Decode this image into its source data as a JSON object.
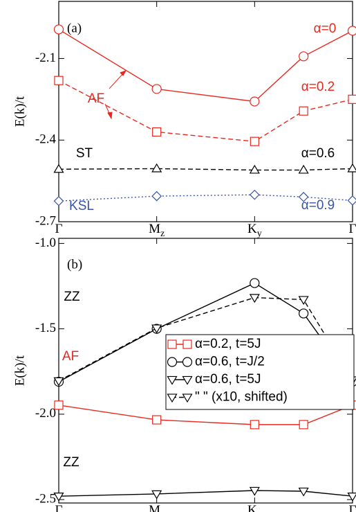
{
  "chart_data": [
    {
      "type": "line",
      "panel_label": "(a)",
      "ylabel": "E(k)/t",
      "x": [
        0,
        1,
        2,
        2.5,
        3
      ],
      "xlim": [
        0,
        3
      ],
      "xticks": [
        {
          "value": 0,
          "label": "Γ"
        },
        {
          "value": 1,
          "label": "M",
          "sub": "z"
        },
        {
          "value": 2,
          "label": "K",
          "sub": "y"
        },
        {
          "value": 3,
          "label": "Γ"
        }
      ],
      "ylim": [
        -2.7,
        -1.89
      ],
      "yticks": [
        -2.1,
        -2.4,
        -2.7
      ],
      "series": [
        {
          "name": "α=0",
          "color": "#e8281e",
          "dash": "solid",
          "marker": "circle",
          "values": [
            -1.993,
            -2.212,
            -2.258,
            -2.092,
            -1.998
          ]
        },
        {
          "name": "α=0.2",
          "color": "#e8281e",
          "dash": "dashed",
          "marker": "square",
          "values": [
            -2.181,
            -2.37,
            -2.405,
            -2.293,
            -2.25
          ]
        },
        {
          "name": "α=0.6",
          "color": "#000000",
          "dash": "dashed",
          "marker": "triangle-up",
          "values": [
            -2.507,
            -2.505,
            -2.51,
            -2.51,
            -2.505
          ]
        },
        {
          "name": "α=0.9",
          "color": "#3a52a8",
          "dash": "dotted",
          "marker": "diamond",
          "values": [
            -2.624,
            -2.606,
            -2.601,
            -2.609,
            -2.622
          ]
        }
      ],
      "annotations": [
        {
          "text": "AF",
          "color": "#e8281e"
        },
        {
          "text": "ST",
          "color": "#000000"
        },
        {
          "text": "KSL",
          "color": "#3a52a8"
        }
      ]
    },
    {
      "type": "line",
      "panel_label": "(b)",
      "ylabel": "E(k)/t",
      "x": [
        0,
        1,
        2,
        2.5,
        3
      ],
      "xlim": [
        0,
        3
      ],
      "xticks": [
        {
          "value": 0,
          "label": "Γ"
        },
        {
          "value": 1,
          "label": "M",
          "sub": "z"
        },
        {
          "value": 2,
          "label": "K",
          "sub": "y"
        },
        {
          "value": 3,
          "label": "Γ"
        }
      ],
      "ylim": [
        -2.52,
        -0.97
      ],
      "yticks": [
        {
          "value": -1,
          "label": "-1.0"
        },
        -1.5,
        {
          "value": -2,
          "label": "-2.0"
        },
        -2.5
      ],
      "legend": "right",
      "series": [
        {
          "name": "α=0.2, t=5J",
          "color": "#e8281e",
          "dash": "solid",
          "marker": "square",
          "values": [
            -1.947,
            -2.033,
            -2.061,
            -2.061,
            -1.947
          ]
        },
        {
          "name": "α=0.6, t=J/2",
          "color": "#000000",
          "dash": "solid",
          "marker": "circle",
          "values": [
            -1.81,
            -1.5,
            -1.232,
            -1.41,
            -1.81
          ]
        },
        {
          "name": "α=0.6, t=5J",
          "color": "#000000",
          "dash": "solid",
          "marker": "triangle-down",
          "values": [
            -2.48,
            -2.467,
            -2.447,
            -2.451,
            -2.48
          ]
        },
        {
          "name": "\" \" (x10, shifted)",
          "color": "#000000",
          "dash": "dashed",
          "marker": "triangle-down",
          "values": [
            -1.805,
            -1.496,
            -1.317,
            -1.329,
            -1.8
          ]
        }
      ],
      "annotations": [
        {
          "text": "ZZ",
          "color": "#000000"
        },
        {
          "text": "AF",
          "color": "#e8281e"
        },
        {
          "text": "ZZ",
          "color": "#000000"
        }
      ]
    }
  ]
}
